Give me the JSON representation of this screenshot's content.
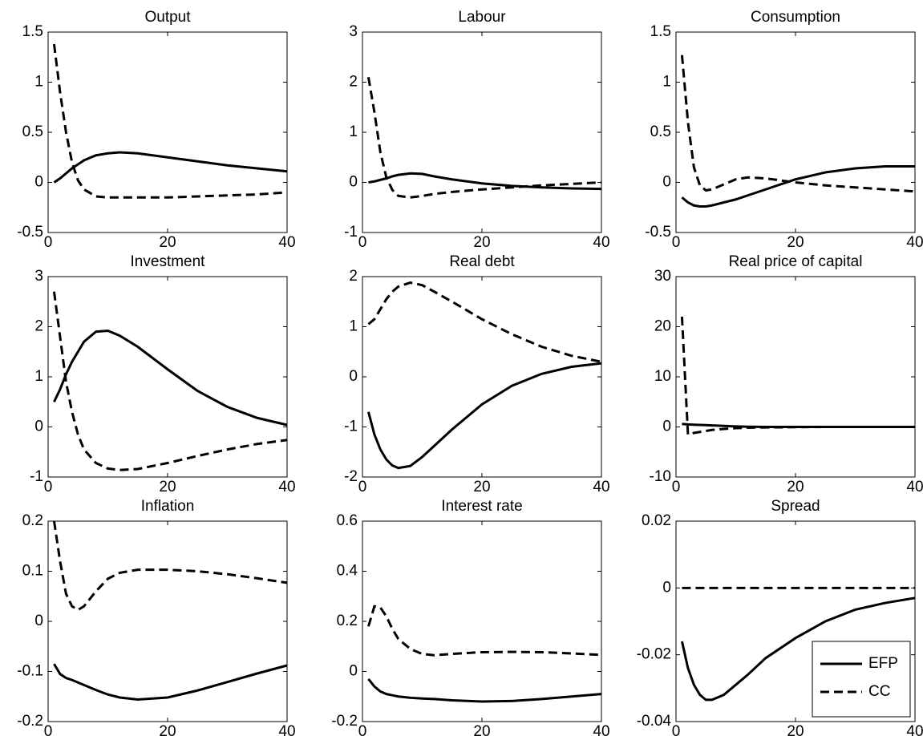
{
  "chart_data": [
    {
      "type": "line",
      "title": "Output",
      "x": [
        1,
        2,
        3,
        4,
        5,
        6,
        8,
        10,
        12,
        15,
        20,
        25,
        30,
        35,
        40
      ],
      "xlim": [
        0,
        40
      ],
      "xticks": [
        0,
        20,
        40
      ],
      "ylim": [
        -0.5,
        1.5
      ],
      "yticks": [
        -0.5,
        0,
        0.5,
        1,
        1.5
      ],
      "series": [
        {
          "color": "#000000",
          "style": "solid",
          "values": [
            0.0,
            0.04,
            0.09,
            0.14,
            0.18,
            0.22,
            0.27,
            0.29,
            0.3,
            0.29,
            0.25,
            0.21,
            0.17,
            0.14,
            0.11
          ]
        },
        {
          "color": "#000000",
          "style": "dashed",
          "values": [
            1.38,
            0.9,
            0.5,
            0.2,
            0.02,
            -0.07,
            -0.14,
            -0.15,
            -0.15,
            -0.15,
            -0.15,
            -0.14,
            -0.13,
            -0.12,
            -0.1
          ]
        }
      ]
    },
    {
      "type": "line",
      "title": "Labour",
      "x": [
        1,
        2,
        3,
        4,
        5,
        6,
        8,
        10,
        12,
        15,
        20,
        25,
        30,
        35,
        40
      ],
      "xlim": [
        0,
        40
      ],
      "xticks": [
        0,
        20,
        40
      ],
      "ylim": [
        -1,
        3
      ],
      "yticks": [
        -1,
        0,
        1,
        2,
        3
      ],
      "series": [
        {
          "color": "#000000",
          "style": "solid",
          "values": [
            0.0,
            0.02,
            0.05,
            0.08,
            0.12,
            0.15,
            0.18,
            0.17,
            0.12,
            0.06,
            -0.02,
            -0.07,
            -0.1,
            -0.12,
            -0.13
          ]
        },
        {
          "color": "#000000",
          "style": "dashed",
          "values": [
            2.1,
            1.4,
            0.6,
            0.1,
            -0.15,
            -0.27,
            -0.3,
            -0.27,
            -0.23,
            -0.19,
            -0.14,
            -0.1,
            -0.06,
            -0.03,
            0.0
          ]
        }
      ]
    },
    {
      "type": "line",
      "title": "Consumption",
      "x": [
        1,
        2,
        3,
        4,
        5,
        6,
        8,
        10,
        12,
        15,
        20,
        25,
        30,
        35,
        40
      ],
      "xlim": [
        0,
        40
      ],
      "xticks": [
        0,
        20,
        40
      ],
      "ylim": [
        -0.5,
        1.5
      ],
      "yticks": [
        -0.5,
        0,
        0.5,
        1,
        1.5
      ],
      "series": [
        {
          "color": "#000000",
          "style": "solid",
          "values": [
            -0.15,
            -0.2,
            -0.23,
            -0.24,
            -0.24,
            -0.23,
            -0.2,
            -0.17,
            -0.13,
            -0.07,
            0.03,
            0.1,
            0.14,
            0.16,
            0.16
          ]
        },
        {
          "color": "#000000",
          "style": "dashed",
          "values": [
            1.27,
            0.6,
            0.15,
            -0.03,
            -0.08,
            -0.07,
            -0.02,
            0.03,
            0.05,
            0.04,
            0.0,
            -0.03,
            -0.05,
            -0.07,
            -0.09
          ]
        }
      ]
    },
    {
      "type": "line",
      "title": "Investment",
      "x": [
        1,
        2,
        3,
        4,
        5,
        6,
        8,
        10,
        12,
        15,
        20,
        25,
        30,
        35,
        40
      ],
      "xlim": [
        0,
        40
      ],
      "xticks": [
        0,
        20,
        40
      ],
      "ylim": [
        -1,
        3
      ],
      "yticks": [
        -1,
        0,
        1,
        2,
        3
      ],
      "series": [
        {
          "color": "#000000",
          "style": "solid",
          "values": [
            0.5,
            0.75,
            1.05,
            1.3,
            1.5,
            1.7,
            1.9,
            1.92,
            1.82,
            1.6,
            1.15,
            0.72,
            0.4,
            0.18,
            0.04
          ]
        },
        {
          "color": "#000000",
          "style": "dashed",
          "values": [
            2.7,
            1.8,
            0.9,
            0.3,
            -0.15,
            -0.45,
            -0.72,
            -0.83,
            -0.86,
            -0.84,
            -0.72,
            -0.58,
            -0.45,
            -0.34,
            -0.26
          ]
        }
      ]
    },
    {
      "type": "line",
      "title": "Real debt",
      "x": [
        1,
        2,
        3,
        4,
        5,
        6,
        8,
        10,
        12,
        15,
        20,
        25,
        30,
        35,
        40
      ],
      "xlim": [
        0,
        40
      ],
      "xticks": [
        0,
        20,
        40
      ],
      "ylim": [
        -2,
        2
      ],
      "yticks": [
        -2,
        -1,
        0,
        1,
        2
      ],
      "series": [
        {
          "color": "#000000",
          "style": "solid",
          "values": [
            -0.7,
            -1.15,
            -1.45,
            -1.65,
            -1.77,
            -1.82,
            -1.78,
            -1.6,
            -1.38,
            -1.05,
            -0.55,
            -0.18,
            0.06,
            0.2,
            0.27
          ]
        },
        {
          "color": "#000000",
          "style": "dashed",
          "values": [
            1.05,
            1.15,
            1.35,
            1.55,
            1.7,
            1.8,
            1.88,
            1.83,
            1.7,
            1.5,
            1.15,
            0.85,
            0.6,
            0.42,
            0.3
          ]
        }
      ]
    },
    {
      "type": "line",
      "title": "Real price of capital",
      "x": [
        1,
        2,
        3,
        4,
        5,
        6,
        8,
        10,
        12,
        15,
        20,
        25,
        30,
        35,
        40
      ],
      "xlim": [
        0,
        40
      ],
      "xticks": [
        0,
        20,
        40
      ],
      "ylim": [
        -10,
        30
      ],
      "yticks": [
        -10,
        0,
        10,
        20,
        30
      ],
      "series": [
        {
          "color": "#000000",
          "style": "solid",
          "values": [
            0.6,
            0.5,
            0.45,
            0.4,
            0.35,
            0.3,
            0.2,
            0.1,
            0.05,
            0,
            0,
            0,
            0,
            0,
            0
          ]
        },
        {
          "color": "#000000",
          "style": "dashed",
          "values": [
            22,
            -1.5,
            -1.2,
            -1.0,
            -0.8,
            -0.6,
            -0.4,
            -0.25,
            -0.15,
            -0.1,
            -0.05,
            0,
            0,
            0,
            0
          ]
        }
      ]
    },
    {
      "type": "line",
      "title": "Inflation",
      "x": [
        1,
        2,
        3,
        4,
        5,
        6,
        8,
        10,
        12,
        15,
        20,
        25,
        30,
        35,
        40
      ],
      "xlim": [
        0,
        40
      ],
      "xticks": [
        0,
        20,
        40
      ],
      "ylim": [
        -0.2,
        0.2
      ],
      "yticks": [
        -0.2,
        -0.1,
        0,
        0.1,
        0.2
      ],
      "series": [
        {
          "color": "#000000",
          "style": "solid",
          "values": [
            -0.085,
            -0.105,
            -0.113,
            -0.117,
            -0.122,
            -0.127,
            -0.137,
            -0.146,
            -0.152,
            -0.156,
            -0.152,
            -0.138,
            -0.121,
            -0.104,
            -0.088
          ]
        },
        {
          "color": "#000000",
          "style": "dashed",
          "values": [
            0.2,
            0.12,
            0.055,
            0.03,
            0.023,
            0.03,
            0.06,
            0.085,
            0.097,
            0.103,
            0.103,
            0.1,
            0.094,
            0.086,
            0.077
          ]
        }
      ]
    },
    {
      "type": "line",
      "title": "Interest rate",
      "x": [
        1,
        2,
        3,
        4,
        5,
        6,
        8,
        10,
        12,
        15,
        20,
        25,
        30,
        35,
        40
      ],
      "xlim": [
        0,
        40
      ],
      "xticks": [
        0,
        20,
        40
      ],
      "ylim": [
        -0.2,
        0.6
      ],
      "yticks": [
        -0.2,
        0,
        0.2,
        0.4,
        0.6
      ],
      "series": [
        {
          "color": "#000000",
          "style": "solid",
          "values": [
            -0.03,
            -0.06,
            -0.08,
            -0.09,
            -0.095,
            -0.1,
            -0.105,
            -0.108,
            -0.11,
            -0.115,
            -0.12,
            -0.118,
            -0.11,
            -0.1,
            -0.09
          ]
        },
        {
          "color": "#000000",
          "style": "dashed",
          "values": [
            0.18,
            0.26,
            0.255,
            0.22,
            0.17,
            0.13,
            0.09,
            0.07,
            0.065,
            0.07,
            0.077,
            0.078,
            0.077,
            0.072,
            0.066
          ]
        }
      ]
    },
    {
      "type": "line",
      "title": "Spread",
      "x": [
        1,
        2,
        3,
        4,
        5,
        6,
        8,
        10,
        12,
        15,
        20,
        25,
        30,
        35,
        40
      ],
      "xlim": [
        0,
        40
      ],
      "xticks": [
        0,
        20,
        40
      ],
      "ylim": [
        -0.04,
        0.02
      ],
      "yticks": [
        -0.04,
        -0.02,
        0,
        0.02
      ],
      "legend": "lower right",
      "series": [
        {
          "name": "EFP",
          "color": "#000000",
          "style": "solid",
          "values": [
            -0.016,
            -0.024,
            -0.029,
            -0.032,
            -0.0335,
            -0.0335,
            -0.032,
            -0.029,
            -0.026,
            -0.021,
            -0.015,
            -0.01,
            -0.0065,
            -0.0045,
            -0.003
          ]
        },
        {
          "name": "CC",
          "color": "#000000",
          "style": "dashed",
          "values": [
            0,
            0,
            0,
            0,
            0,
            0,
            0,
            0,
            0,
            0,
            0,
            0,
            0,
            0,
            0
          ]
        }
      ]
    }
  ]
}
